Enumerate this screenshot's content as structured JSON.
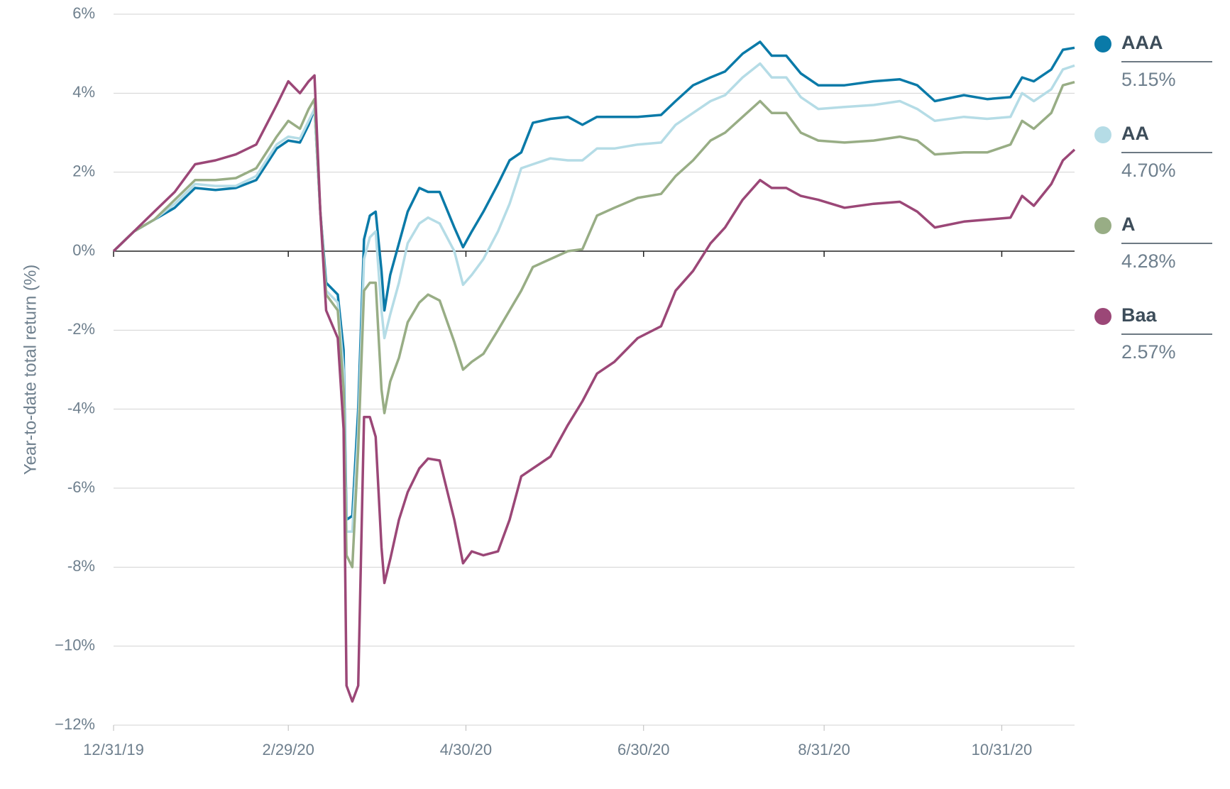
{
  "chart_data": {
    "type": "line",
    "y_label": "Year-to-date total return (%)",
    "x": [
      0,
      7,
      14,
      21,
      28,
      35,
      42,
      49,
      56,
      60,
      64,
      67,
      69,
      71,
      73,
      77,
      79,
      80,
      82,
      84,
      86,
      88,
      90,
      92,
      93,
      95,
      98,
      101,
      105,
      108,
      112,
      117,
      120,
      123,
      127,
      132,
      136,
      140,
      144,
      150,
      156,
      161,
      166,
      172,
      180,
      188,
      193,
      199,
      205,
      210,
      216,
      222,
      226,
      231,
      236,
      242,
      251,
      261,
      270,
      276,
      282,
      292,
      300,
      308,
      312,
      316,
      322,
      326,
      330
    ],
    "xlim": [
      0,
      330
    ],
    "xticks": [
      {
        "value": 0,
        "label": "12/31/19"
      },
      {
        "value": 60,
        "label": "2/29/20"
      },
      {
        "value": 121,
        "label": "4/30/20"
      },
      {
        "value": 182,
        "label": "6/30/20"
      },
      {
        "value": 244,
        "label": "8/31/20"
      },
      {
        "value": 305,
        "label": "10/31/20"
      }
    ],
    "ylim": [
      -12,
      6
    ],
    "yticks": [
      {
        "value": -12,
        "label": "−12%"
      },
      {
        "value": -10,
        "label": "−10%"
      },
      {
        "value": -8,
        "label": "-8%"
      },
      {
        "value": -6,
        "label": "-6%"
      },
      {
        "value": -4,
        "label": "-4%"
      },
      {
        "value": -2,
        "label": "-2%"
      },
      {
        "value": 0,
        "label": "0%"
      },
      {
        "value": 2,
        "label": "2%"
      },
      {
        "value": 4,
        "label": "4%"
      },
      {
        "value": 6,
        "label": "6%"
      }
    ],
    "grid": true,
    "series": [
      {
        "name": "AAA",
        "color": "#0a7aa8",
        "legend_value": "5.15%",
        "values": [
          0,
          0.5,
          0.8,
          1.1,
          1.6,
          1.55,
          1.6,
          1.8,
          2.6,
          2.8,
          2.75,
          3.2,
          3.6,
          1.0,
          -0.8,
          -1.1,
          -2.5,
          -6.8,
          -6.7,
          -4,
          0.3,
          0.9,
          1.0,
          -0.5,
          -1.5,
          -0.6,
          0.2,
          1.0,
          1.6,
          1.5,
          1.5,
          0.6,
          0.1,
          0.5,
          1.0,
          1.7,
          2.3,
          2.5,
          3.25,
          3.35,
          3.4,
          3.2,
          3.4,
          3.4,
          3.4,
          3.45,
          3.8,
          4.2,
          4.4,
          4.55,
          5.0,
          5.3,
          4.95,
          4.95,
          4.5,
          4.2,
          4.2,
          4.3,
          4.35,
          4.2,
          3.8,
          3.95,
          3.85,
          3.9,
          4.4,
          4.3,
          4.6,
          5.1,
          5.15
        ]
      },
      {
        "name": "AA",
        "color": "#b5dce6",
        "legend_value": "4.70%",
        "values": [
          0,
          0.5,
          0.8,
          1.2,
          1.7,
          1.65,
          1.65,
          1.9,
          2.7,
          2.9,
          2.85,
          3.3,
          3.6,
          1.0,
          -1.0,
          -1.3,
          -3,
          -7.1,
          -7.1,
          -4.5,
          -0.2,
          0.35,
          0.5,
          -1.5,
          -2.2,
          -1.6,
          -0.8,
          0.2,
          0.7,
          0.85,
          0.7,
          0.0,
          -0.85,
          -0.6,
          -0.2,
          0.5,
          1.2,
          2.1,
          2.2,
          2.35,
          2.3,
          2.3,
          2.6,
          2.6,
          2.7,
          2.75,
          3.2,
          3.5,
          3.8,
          3.95,
          4.4,
          4.75,
          4.4,
          4.4,
          3.9,
          3.6,
          3.65,
          3.7,
          3.8,
          3.6,
          3.3,
          3.4,
          3.35,
          3.4,
          4.0,
          3.8,
          4.1,
          4.6,
          4.7
        ]
      },
      {
        "name": "A",
        "color": "#98ad85",
        "legend_value": "4.28%",
        "values": [
          0,
          0.5,
          0.8,
          1.3,
          1.8,
          1.8,
          1.85,
          2.1,
          2.9,
          3.3,
          3.1,
          3.6,
          3.85,
          1.0,
          -1.1,
          -1.5,
          -3.5,
          -7.7,
          -8.0,
          -5,
          -1.0,
          -0.8,
          -0.8,
          -3.5,
          -4.1,
          -3.3,
          -2.7,
          -1.8,
          -1.3,
          -1.1,
          -1.25,
          -2.3,
          -3.0,
          -2.8,
          -2.6,
          -2.0,
          -1.5,
          -1.0,
          -0.4,
          -0.2,
          0.0,
          0.05,
          0.9,
          1.1,
          1.35,
          1.45,
          1.9,
          2.3,
          2.8,
          3.0,
          3.4,
          3.8,
          3.5,
          3.5,
          3.0,
          2.8,
          2.75,
          2.8,
          2.9,
          2.8,
          2.45,
          2.5,
          2.5,
          2.7,
          3.3,
          3.1,
          3.5,
          4.2,
          4.28
        ]
      },
      {
        "name": "Baa",
        "color": "#9b4777",
        "legend_value": "2.57%",
        "values": [
          0,
          0.5,
          1.0,
          1.5,
          2.2,
          2.3,
          2.45,
          2.7,
          3.7,
          4.3,
          4.0,
          4.3,
          4.45,
          1.0,
          -1.5,
          -2.2,
          -4.5,
          -11.0,
          -11.4,
          -11,
          -4.2,
          -4.2,
          -4.7,
          -7.5,
          -8.4,
          -7.8,
          -6.8,
          -6.1,
          -5.5,
          -5.25,
          -5.3,
          -6.8,
          -7.9,
          -7.6,
          -7.7,
          -7.6,
          -6.8,
          -5.7,
          -5.5,
          -5.2,
          -4.4,
          -3.8,
          -3.1,
          -2.8,
          -2.2,
          -1.9,
          -1.0,
          -0.5,
          0.2,
          0.6,
          1.3,
          1.8,
          1.6,
          1.6,
          1.4,
          1.3,
          1.1,
          1.2,
          1.25,
          1.0,
          0.6,
          0.75,
          0.8,
          0.85,
          1.4,
          1.15,
          1.7,
          2.3,
          2.57
        ]
      }
    ]
  }
}
